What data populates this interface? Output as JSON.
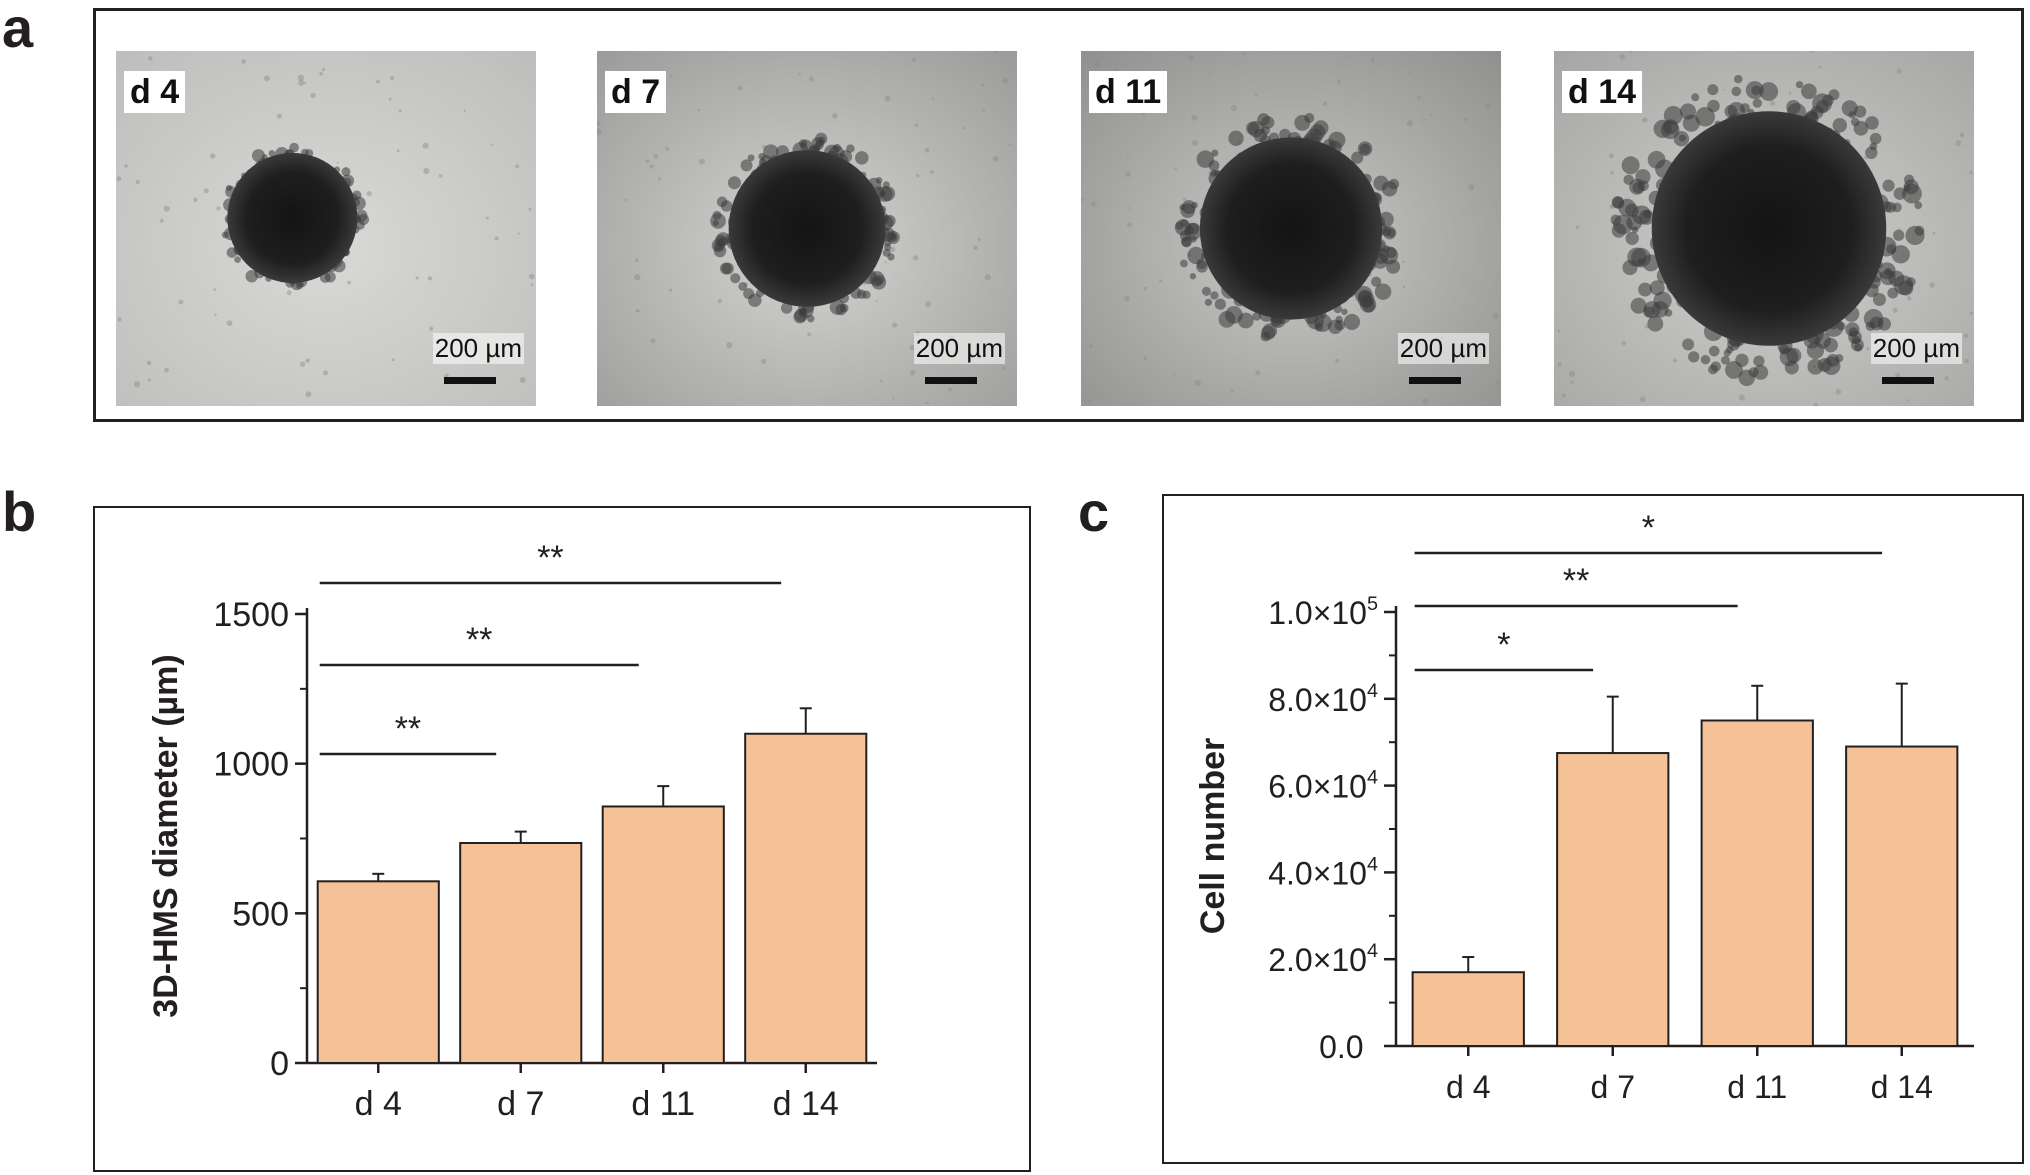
{
  "figure": {
    "panel_labels": [
      "a",
      "b",
      "c"
    ],
    "panel_a": {
      "images": [
        {
          "day": "d 4",
          "scale_label": "200 µm",
          "spheroid_diameter_um": 610
        },
        {
          "day": "d 7",
          "scale_label": "200 µm",
          "spheroid_diameter_um": 735
        },
        {
          "day": "d 11",
          "scale_label": "200 µm",
          "spheroid_diameter_um": 855
        },
        {
          "day": "d 14",
          "scale_label": "200 µm",
          "spheroid_diameter_um": 1100
        }
      ]
    }
  },
  "colors": {
    "bar_fill": "#f5c297",
    "bar_stroke": "#231f20",
    "axis": "#231f20",
    "image_bg_light": "#d8d8d6",
    "spheroid_core": "#141414"
  },
  "chart_data": [
    {
      "type": "bar",
      "panel": "b",
      "categories": [
        "d 4",
        "d 7",
        "d 11",
        "d 14"
      ],
      "values": [
        607,
        735,
        857,
        1100
      ],
      "errors": [
        25,
        38,
        68,
        85
      ],
      "ylabel": "3D-HMS diameter (µm)",
      "xlabel": "",
      "ylim": [
        0,
        1500
      ],
      "yticks": [
        0,
        500,
        1000,
        1500
      ],
      "ytick_labels": [
        "0",
        "500",
        "1000",
        "1500"
      ],
      "significance": [
        {
          "from": "d 4",
          "to": "d 7",
          "label": "**"
        },
        {
          "from": "d 4",
          "to": "d 11",
          "label": "**"
        },
        {
          "from": "d 4",
          "to": "d 14",
          "label": "**"
        }
      ],
      "grid": false,
      "legend": "none"
    },
    {
      "type": "bar",
      "panel": "c",
      "categories": [
        "d 4",
        "d 7",
        "d 11",
        "d 14"
      ],
      "values": [
        17000,
        67500,
        75000,
        69000
      ],
      "errors": [
        3500,
        13000,
        8000,
        14500
      ],
      "ylabel": "Cell number",
      "xlabel": "",
      "ylim": [
        0,
        100000
      ],
      "yticks": [
        0,
        20000,
        40000,
        60000,
        80000,
        100000
      ],
      "ytick_labels": [
        {
          "mantissa": "0.0",
          "exp": ""
        },
        {
          "mantissa": "2.0×10",
          "exp": "4"
        },
        {
          "mantissa": "4.0×10",
          "exp": "4"
        },
        {
          "mantissa": "6.0×10",
          "exp": "4"
        },
        {
          "mantissa": "8.0×10",
          "exp": "4"
        },
        {
          "mantissa": "1.0×10",
          "exp": "5"
        }
      ],
      "significance": [
        {
          "from": "d 4",
          "to": "d 7",
          "label": "*"
        },
        {
          "from": "d 4",
          "to": "d 11",
          "label": "**"
        },
        {
          "from": "d 4",
          "to": "d 14",
          "label": "*"
        }
      ],
      "grid": false,
      "legend": "none"
    }
  ]
}
